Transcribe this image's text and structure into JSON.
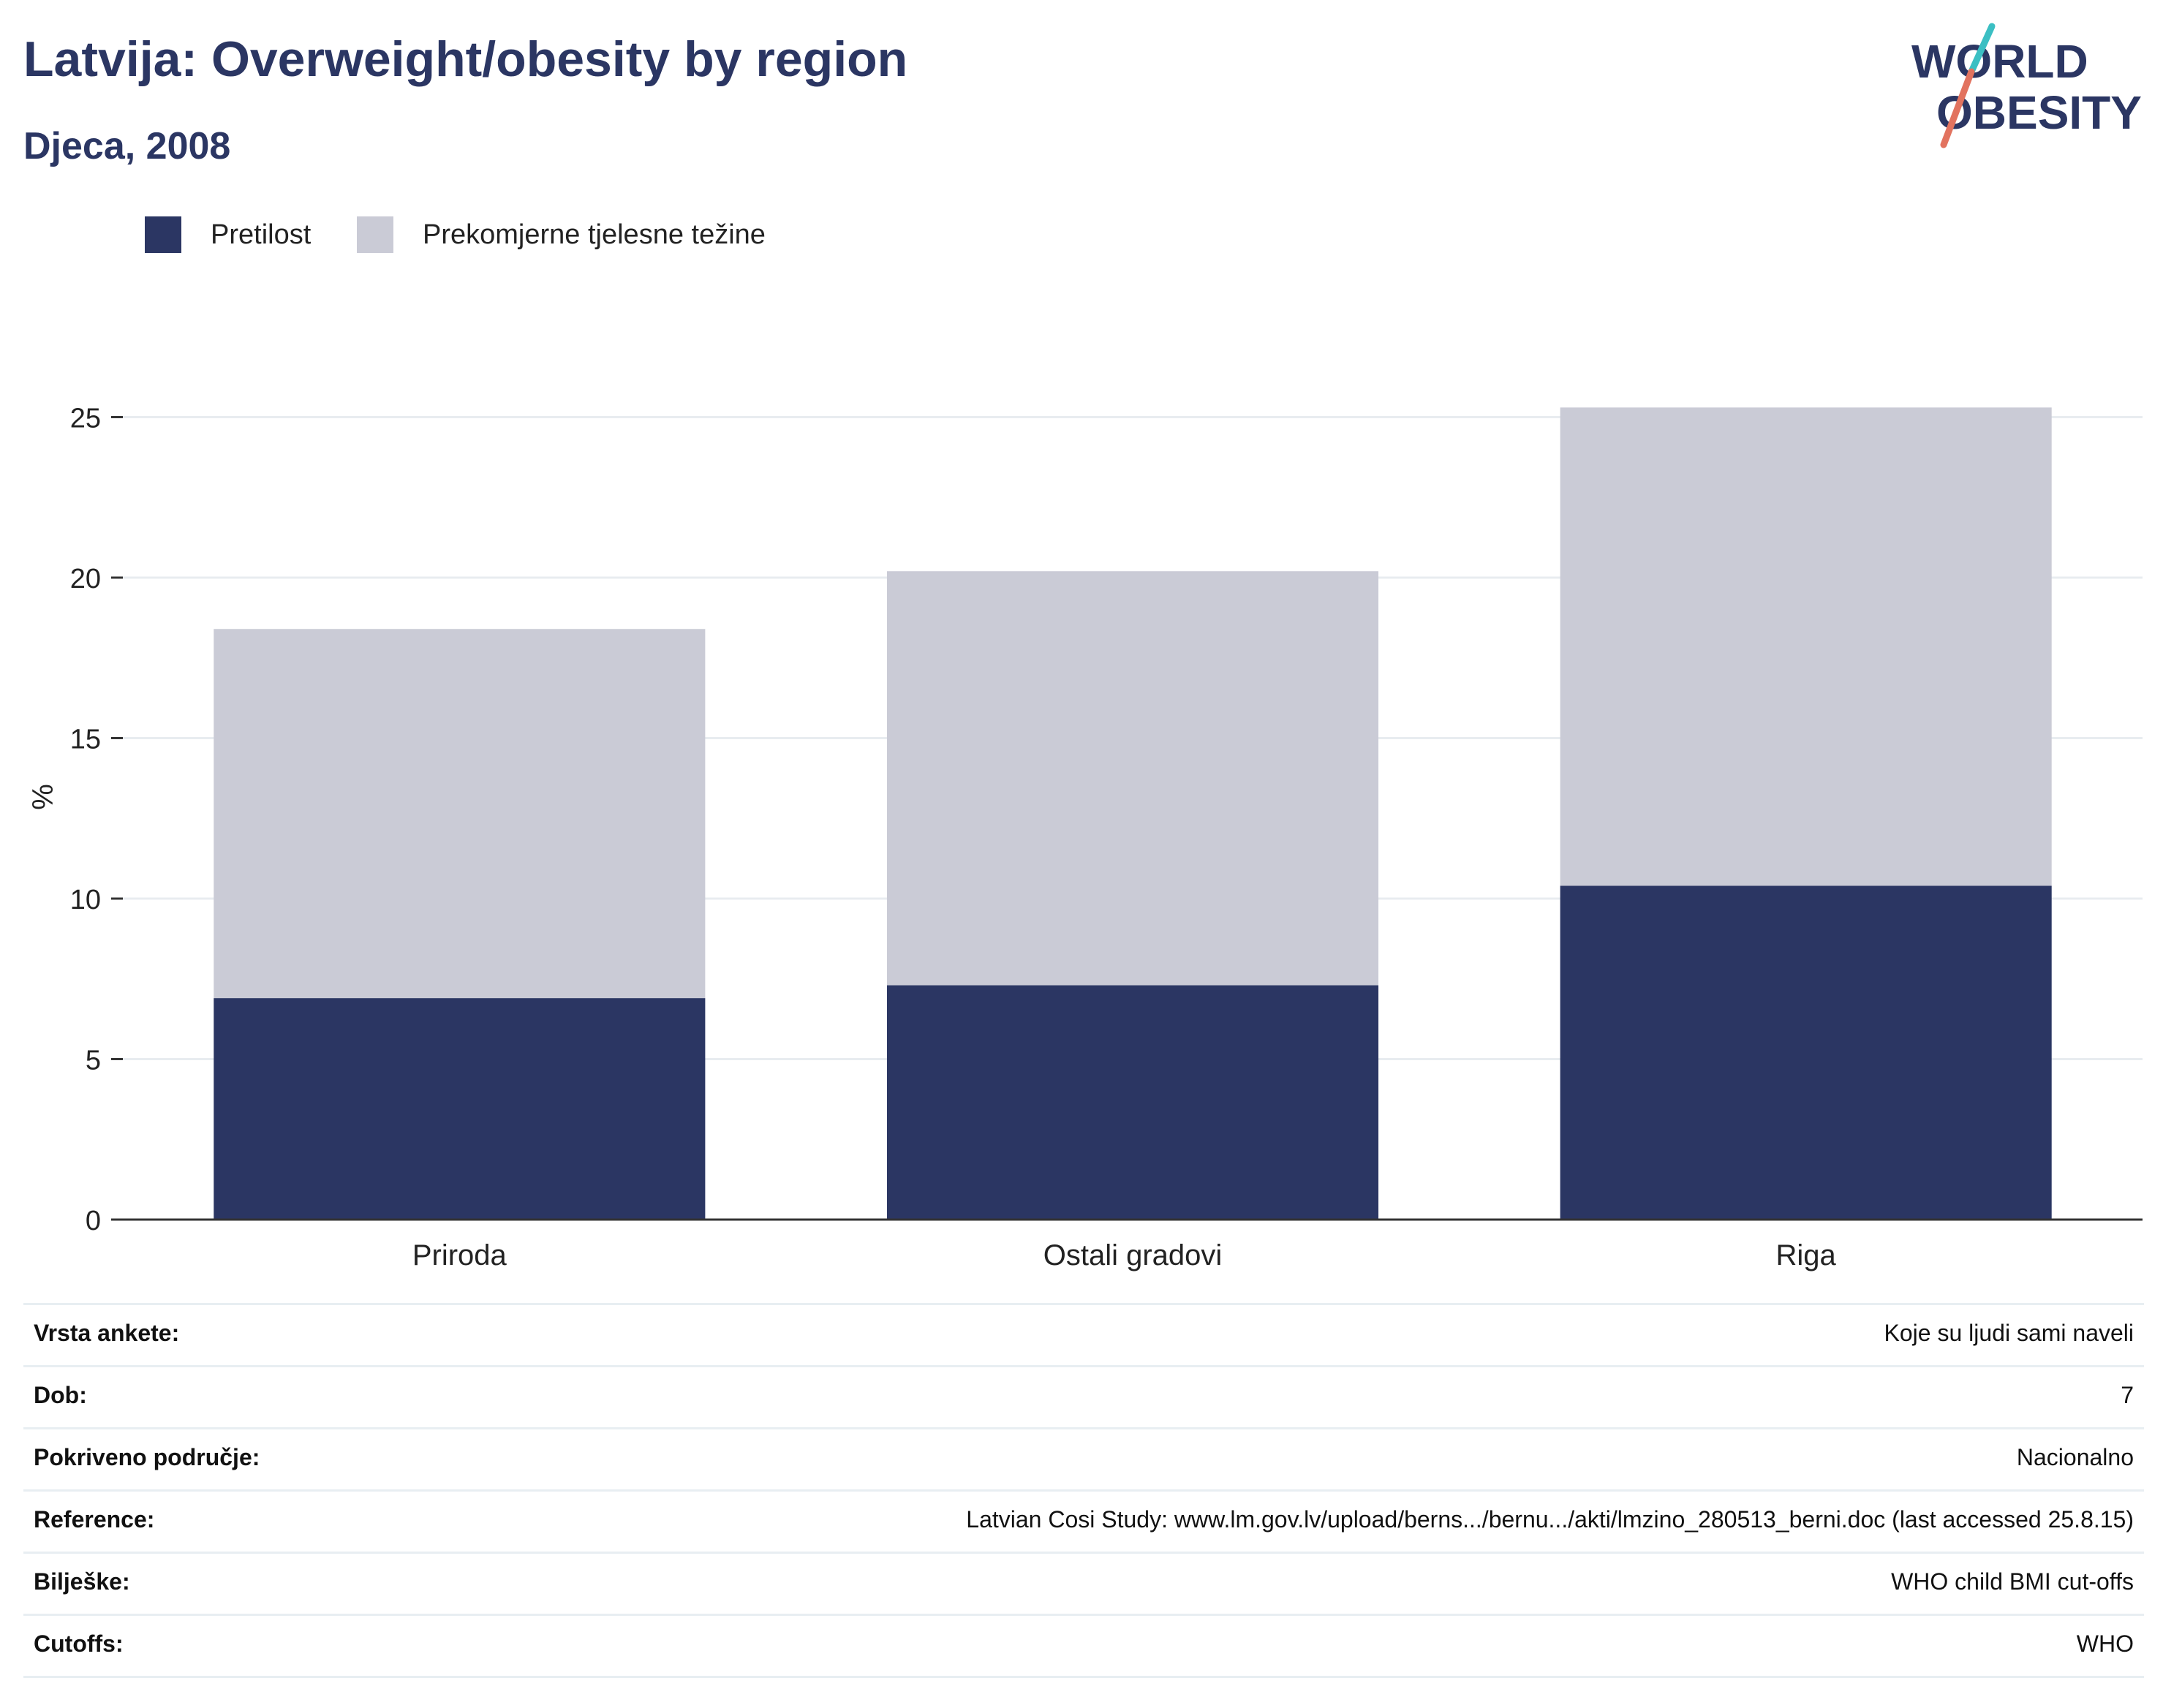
{
  "header": {
    "title": "Latvija: Overweight/obesity by region",
    "subtitle": "Djeca, 2008"
  },
  "logo": {
    "line1": "WORLD",
    "line2": "OBESITY",
    "accent_colors": [
      "#3bbfc3",
      "#e2735f"
    ]
  },
  "colors": {
    "obesity": "#2b3663",
    "overweight": "#cacbd6",
    "grid": "#e8ecf0",
    "axis": "#333333"
  },
  "chart_data": {
    "type": "bar",
    "stacked": true,
    "title": "Latvija: Overweight/obesity by region",
    "subtitle": "Djeca, 2008",
    "xlabel": "",
    "ylabel": "%",
    "ylim": [
      0,
      27
    ],
    "yticks": [
      0,
      5,
      10,
      15,
      20,
      25
    ],
    "grid": true,
    "legend_position": "top-left",
    "categories": [
      "Priroda",
      "Ostali gradovi",
      "Riga"
    ],
    "series": [
      {
        "name": "Pretilost",
        "color": "#2b3663",
        "values": [
          6.9,
          7.3,
          10.4
        ]
      },
      {
        "name": "Prekomjerne tjelesne težine",
        "color": "#cacbd6",
        "values": [
          11.5,
          12.9,
          14.9
        ]
      }
    ],
    "totals": [
      18.4,
      20.2,
      25.3
    ]
  },
  "details": [
    {
      "label": "Vrsta ankete:",
      "value": "Koje su ljudi sami naveli"
    },
    {
      "label": "Dob:",
      "value": "7"
    },
    {
      "label": "Pokriveno područje:",
      "value": "Nacionalno"
    },
    {
      "label": "Reference:",
      "value": "Latvian Cosi Study: www.lm.gov.lv/upload/berns.../bernu.../akti/lmzino_280513_berni.doc (last accessed 25.8.15)"
    },
    {
      "label": "Bilješke:",
      "value": "WHO child BMI cut-offs"
    },
    {
      "label": "Cutoffs:",
      "value": "WHO"
    }
  ]
}
